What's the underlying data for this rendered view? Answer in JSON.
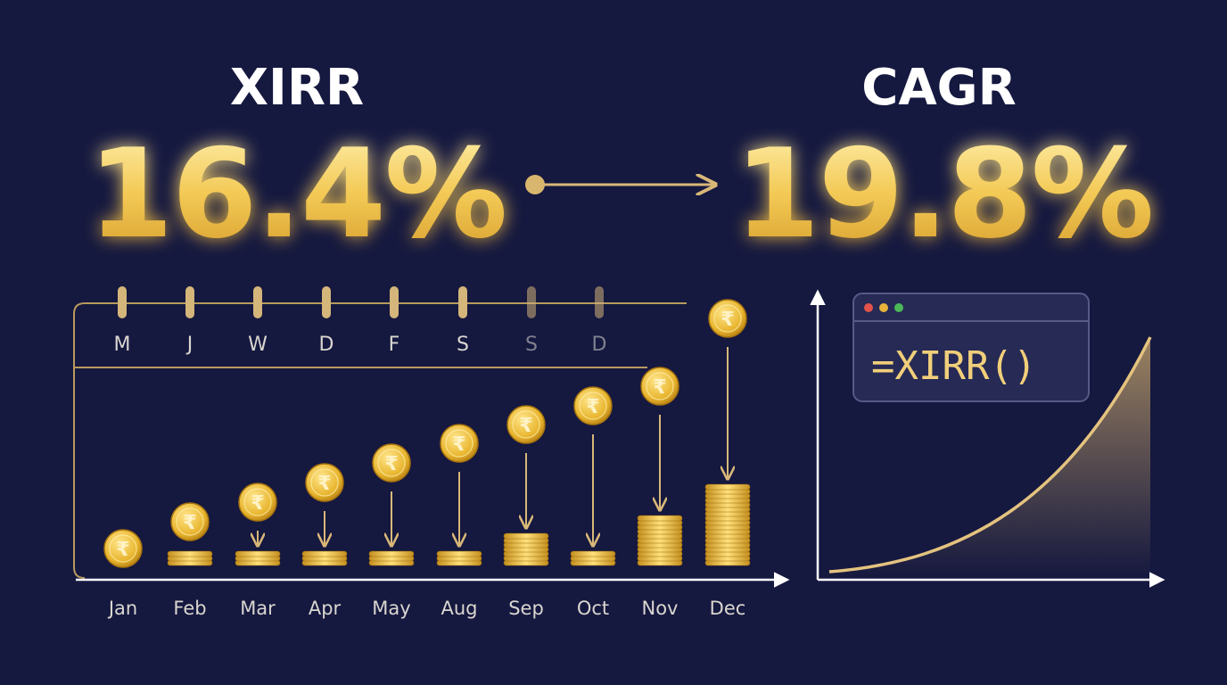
{
  "left": {
    "label": "XIRR",
    "value_text": "16.4%"
  },
  "right": {
    "label": "CAGR",
    "value_text": "19.8%"
  },
  "calendar": {
    "days": [
      "M",
      "J",
      "W",
      "D",
      "F",
      "S",
      "S",
      "D"
    ]
  },
  "months": [
    "Jan",
    "Feb",
    "Mar",
    "Apr",
    "May",
    "Aug",
    "Sep",
    "Oct",
    "Nov",
    "Dec"
  ],
  "currency_symbol": "₹",
  "formula": "=XIRR()"
}
